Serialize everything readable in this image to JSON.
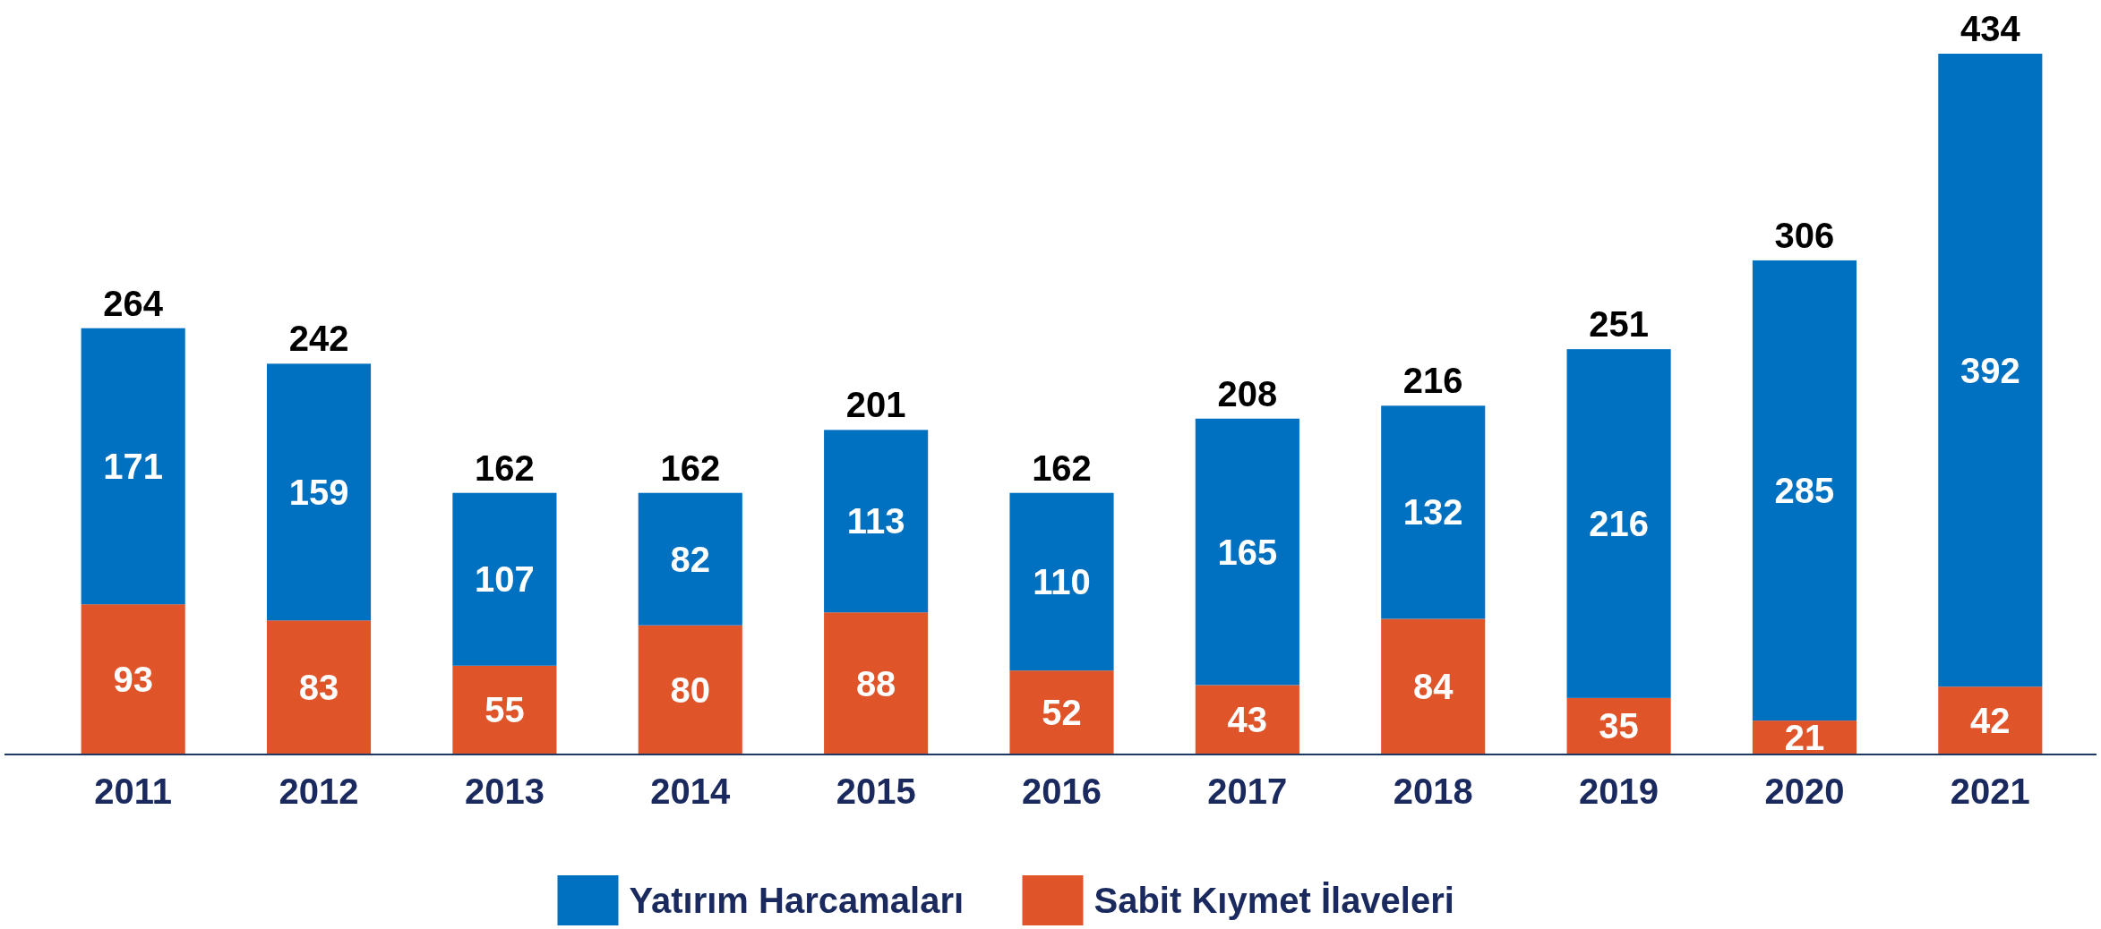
{
  "chart_data": {
    "type": "bar",
    "stacked": true,
    "data_labels": true,
    "legend": "bottom",
    "categories": [
      "2011",
      "2012",
      "2013",
      "2014",
      "2015",
      "2016",
      "2017",
      "2018",
      "2019",
      "2020",
      "2021"
    ],
    "series": [
      {
        "name": "Sabit Kıymet İlaveleri",
        "color": "#e0542a",
        "values": [
          93,
          83,
          55,
          80,
          88,
          52,
          43,
          84,
          35,
          21,
          42
        ]
      },
      {
        "name": "Yatırım Harcamaları",
        "color": "#0070c0",
        "values": [
          171,
          159,
          107,
          82,
          113,
          110,
          165,
          132,
          216,
          285,
          392
        ]
      }
    ],
    "totals": [
      "264",
      "242",
      "162",
      "162",
      "201",
      "162",
      "208",
      "216",
      "251",
      "306",
      "434"
    ]
  }
}
